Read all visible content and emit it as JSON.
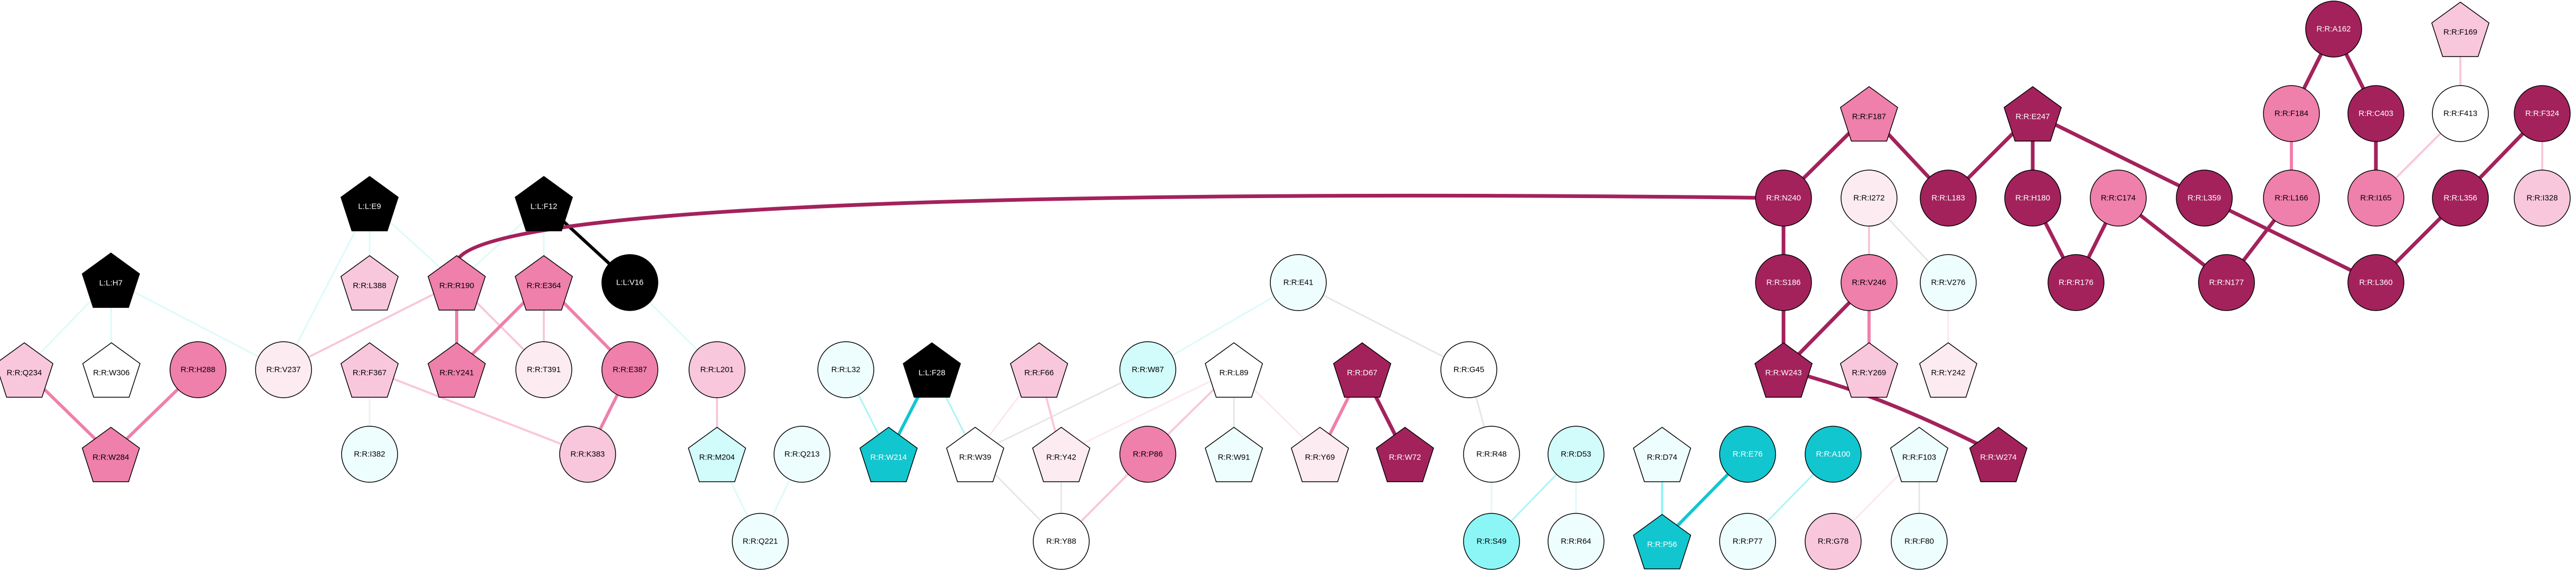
{
  "graph": {
    "palette": {
      "black": "#000000",
      "crimson": "#a3225c",
      "pink": "#ef7fab",
      "light_pink": "#f9c7dc",
      "pale_pink": "#fdebf2",
      "white": "#ffffff",
      "pale_cyan": "#eefefe",
      "light_cyan": "#d2fbfb",
      "cyan": "#8cf6f6",
      "teal": "#12c6cf"
    },
    "nodes": [
      {
        "id": "L:L:H7",
        "label": "L:L:H7",
        "shape": "pentagon",
        "color": "black"
      },
      {
        "id": "R:R:Q234",
        "label": "R:R:Q234",
        "shape": "pentagon",
        "color": "light_pink"
      },
      {
        "id": "R:R:W306",
        "label": "R:R:W306",
        "shape": "pentagon",
        "color": "white"
      },
      {
        "id": "R:R:H288",
        "label": "R:R:H288",
        "shape": "circle",
        "color": "pink"
      },
      {
        "id": "R:R:W284",
        "label": "R:R:W284",
        "shape": "pentagon",
        "color": "pink"
      },
      {
        "id": "L:L:E9",
        "label": "L:L:E9",
        "shape": "pentagon",
        "color": "black"
      },
      {
        "id": "R:R:L388",
        "label": "R:R:L388",
        "shape": "pentagon",
        "color": "light_pink"
      },
      {
        "id": "L:L:F12",
        "label": "L:L:F12",
        "shape": "pentagon",
        "color": "black"
      },
      {
        "id": "R:R:V237",
        "label": "R:R:V237",
        "shape": "circle",
        "color": "pale_pink"
      },
      {
        "id": "R:R:R190",
        "label": "R:R:R190",
        "shape": "pentagon",
        "color": "pink"
      },
      {
        "id": "R:R:E364",
        "label": "R:R:E364",
        "shape": "pentagon",
        "color": "pink"
      },
      {
        "id": "L:L:V16",
        "label": "L:L:V16",
        "shape": "circle",
        "color": "black"
      },
      {
        "id": "R:R:Y241",
        "label": "R:R:Y241",
        "shape": "pentagon",
        "color": "pink"
      },
      {
        "id": "R:R:T391",
        "label": "R:R:T391",
        "shape": "circle",
        "color": "pale_pink"
      },
      {
        "id": "R:R:E387",
        "label": "R:R:E387",
        "shape": "circle",
        "color": "pink"
      },
      {
        "id": "R:R:F367",
        "label": "R:R:F367",
        "shape": "pentagon",
        "color": "light_pink"
      },
      {
        "id": "R:R:K383",
        "label": "R:R:K383",
        "shape": "circle",
        "color": "light_pink"
      },
      {
        "id": "R:R:I382",
        "label": "R:R:I382",
        "shape": "circle",
        "color": "pale_cyan"
      },
      {
        "id": "R:R:L201",
        "label": "R:R:L201",
        "shape": "circle",
        "color": "light_pink"
      },
      {
        "id": "R:R:M204",
        "label": "R:R:M204",
        "shape": "pentagon",
        "color": "light_cyan"
      },
      {
        "id": "R:R:Q213",
        "label": "R:R:Q213",
        "shape": "circle",
        "color": "pale_cyan"
      },
      {
        "id": "R:R:Q221",
        "label": "R:R:Q221",
        "shape": "circle",
        "color": "pale_cyan"
      },
      {
        "id": "R:R:L32",
        "label": "R:R:L32",
        "shape": "circle",
        "color": "pale_cyan"
      },
      {
        "id": "L:L:F28",
        "label": "L:L:F28",
        "shape": "pentagon",
        "color": "black"
      },
      {
        "id": "R:R:W214",
        "label": "R:R:W214",
        "shape": "pentagon",
        "color": "teal"
      },
      {
        "id": "R:R:W39",
        "label": "R:R:W39",
        "shape": "pentagon",
        "color": "white"
      },
      {
        "id": "R:R:F66",
        "label": "R:R:F66",
        "shape": "pentagon",
        "color": "light_pink"
      },
      {
        "id": "R:R:Y42",
        "label": "R:R:Y42",
        "shape": "pentagon",
        "color": "pale_pink"
      },
      {
        "id": "R:R:Y88",
        "label": "R:R:Y88",
        "shape": "circle",
        "color": "white"
      },
      {
        "id": "R:R:W87",
        "label": "R:R:W87",
        "shape": "circle",
        "color": "light_cyan"
      },
      {
        "id": "R:R:P86",
        "label": "R:R:P86",
        "shape": "circle",
        "color": "pink"
      },
      {
        "id": "R:R:L89",
        "label": "R:R:L89",
        "shape": "pentagon",
        "color": "white"
      },
      {
        "id": "R:R:W91",
        "label": "R:R:W91",
        "shape": "pentagon",
        "color": "pale_cyan"
      },
      {
        "id": "R:R:E41",
        "label": "R:R:E41",
        "shape": "circle",
        "color": "pale_cyan"
      },
      {
        "id": "R:R:D67",
        "label": "R:R:D67",
        "shape": "pentagon",
        "color": "crimson"
      },
      {
        "id": "R:R:Y69",
        "label": "R:R:Y69",
        "shape": "pentagon",
        "color": "pale_pink"
      },
      {
        "id": "R:R:W72",
        "label": "R:R:W72",
        "shape": "pentagon",
        "color": "crimson"
      },
      {
        "id": "R:R:G45",
        "label": "R:R:G45",
        "shape": "circle",
        "color": "white"
      },
      {
        "id": "R:R:R48",
        "label": "R:R:R48",
        "shape": "circle",
        "color": "white"
      },
      {
        "id": "R:R:S49",
        "label": "R:R:S49",
        "shape": "circle",
        "color": "cyan"
      },
      {
        "id": "R:R:D53",
        "label": "R:R:D53",
        "shape": "circle",
        "color": "light_cyan"
      },
      {
        "id": "R:R:R64",
        "label": "R:R:R64",
        "shape": "circle",
        "color": "pale_cyan"
      },
      {
        "id": "R:R:D74",
        "label": "R:R:D74",
        "shape": "pentagon",
        "color": "pale_cyan"
      },
      {
        "id": "R:R:P56",
        "label": "R:R:P56",
        "shape": "pentagon",
        "color": "teal"
      },
      {
        "id": "R:R:E76",
        "label": "R:R:E76",
        "shape": "circle",
        "color": "teal"
      },
      {
        "id": "R:R:P77",
        "label": "R:R:P77",
        "shape": "circle",
        "color": "pale_cyan"
      },
      {
        "id": "R:R:A100",
        "label": "R:R:A100",
        "shape": "circle",
        "color": "teal"
      },
      {
        "id": "R:R:F103",
        "label": "R:R:F103",
        "shape": "pentagon",
        "color": "pale_cyan"
      },
      {
        "id": "R:R:G78",
        "label": "R:R:G78",
        "shape": "circle",
        "color": "light_pink"
      },
      {
        "id": "R:R:F80",
        "label": "R:R:F80",
        "shape": "circle",
        "color": "pale_cyan"
      },
      {
        "id": "R:R:F187",
        "label": "R:R:F187",
        "shape": "pentagon",
        "color": "pink"
      },
      {
        "id": "R:R:E247",
        "label": "R:R:E247",
        "shape": "pentagon",
        "color": "crimson"
      },
      {
        "id": "R:R:N240",
        "label": "R:R:N240",
        "shape": "circle",
        "color": "crimson"
      },
      {
        "id": "R:R:L183",
        "label": "R:R:L183",
        "shape": "circle",
        "color": "crimson"
      },
      {
        "id": "R:R:I272",
        "label": "R:R:I272",
        "shape": "circle",
        "color": "pale_pink"
      },
      {
        "id": "R:R:H180",
        "label": "R:R:H180",
        "shape": "circle",
        "color": "crimson"
      },
      {
        "id": "R:R:C174",
        "label": "R:R:C174",
        "shape": "circle",
        "color": "pink"
      },
      {
        "id": "R:R:L359",
        "label": "R:R:L359",
        "shape": "circle",
        "color": "crimson"
      },
      {
        "id": "R:R:S186",
        "label": "R:R:S186",
        "shape": "circle",
        "color": "crimson"
      },
      {
        "id": "R:R:V246",
        "label": "R:R:V246",
        "shape": "circle",
        "color": "pink"
      },
      {
        "id": "R:R:V276",
        "label": "R:R:V276",
        "shape": "circle",
        "color": "pale_cyan"
      },
      {
        "id": "R:R:W243",
        "label": "R:R:W243",
        "shape": "pentagon",
        "color": "crimson"
      },
      {
        "id": "R:R:Y269",
        "label": "R:R:Y269",
        "shape": "pentagon",
        "color": "light_pink"
      },
      {
        "id": "R:R:Y242",
        "label": "R:R:Y242",
        "shape": "pentagon",
        "color": "pale_pink"
      },
      {
        "id": "R:R:W274",
        "label": "R:R:W274",
        "shape": "pentagon",
        "color": "crimson"
      },
      {
        "id": "R:R:R176",
        "label": "R:R:R176",
        "shape": "circle",
        "color": "crimson"
      },
      {
        "id": "R:R:N177",
        "label": "R:R:N177",
        "shape": "circle",
        "color": "crimson"
      },
      {
        "id": "R:R:A162",
        "label": "R:R:A162",
        "shape": "circle",
        "color": "crimson"
      },
      {
        "id": "R:R:F169",
        "label": "R:R:F169",
        "shape": "pentagon",
        "color": "light_pink"
      },
      {
        "id": "R:R:F184",
        "label": "R:R:F184",
        "shape": "circle",
        "color": "pink"
      },
      {
        "id": "R:R:C403",
        "label": "R:R:C403",
        "shape": "circle",
        "color": "crimson"
      },
      {
        "id": "R:R:F413",
        "label": "R:R:F413",
        "shape": "circle",
        "color": "white"
      },
      {
        "id": "R:R:F324",
        "label": "R:R:F324",
        "shape": "circle",
        "color": "crimson"
      },
      {
        "id": "R:R:L166",
        "label": "R:R:L166",
        "shape": "circle",
        "color": "pink"
      },
      {
        "id": "R:R:I165",
        "label": "R:R:I165",
        "shape": "circle",
        "color": "pink"
      },
      {
        "id": "R:R:I328",
        "label": "R:R:I328",
        "shape": "circle",
        "color": "light_pink"
      },
      {
        "id": "R:R:L356",
        "label": "R:R:L356",
        "shape": "circle",
        "color": "crimson"
      },
      {
        "id": "R:R:L360",
        "label": "R:R:L360",
        "shape": "circle",
        "color": "crimson"
      }
    ],
    "edges": [
      {
        "source": "L:L:H7",
        "target": "R:R:Q234",
        "color": "#dcfafa",
        "weight": 3
      },
      {
        "source": "L:L:H7",
        "target": "R:R:W306",
        "color": "#dcfafa",
        "weight": 3
      },
      {
        "source": "L:L:H7",
        "target": "R:R:V237",
        "color": "#dcfafa",
        "weight": 3
      },
      {
        "source": "R:R:Q234",
        "target": "R:R:W284",
        "color": "#ef7fab",
        "weight": 6
      },
      {
        "source": "R:R:H288",
        "target": "R:R:W284",
        "color": "#ef7fab",
        "weight": 6
      },
      {
        "source": "L:L:E9",
        "target": "R:R:L388",
        "color": "#dcfafa",
        "weight": 3
      },
      {
        "source": "L:L:E9",
        "target": "R:R:V237",
        "color": "#dcfafa",
        "weight": 3
      },
      {
        "source": "L:L:E9",
        "target": "R:R:R190",
        "color": "#dcfafa",
        "weight": 3
      },
      {
        "source": "L:L:F12",
        "target": "R:R:R190",
        "color": "#dcfafa",
        "weight": 3
      },
      {
        "source": "L:L:F12",
        "target": "R:R:T391",
        "color": "#dcfafa",
        "weight": 3
      },
      {
        "source": "L:L:F12",
        "target": "L:L:V16",
        "color": "#000000",
        "weight": 6
      },
      {
        "source": "R:R:V237",
        "target": "R:R:R190",
        "color": "#f9c7dc",
        "weight": 4
      },
      {
        "source": "R:R:R190",
        "target": "R:R:Y241",
        "color": "#ef7fab",
        "weight": 6
      },
      {
        "source": "R:R:R190",
        "target": "R:R:T391",
        "color": "#f9c7dc",
        "weight": 4
      },
      {
        "source": "R:R:R190",
        "target": "R:R:N240",
        "color": "#a3225c",
        "weight": 7
      },
      {
        "source": "R:R:E364",
        "target": "R:R:Y241",
        "color": "#ef7fab",
        "weight": 6
      },
      {
        "source": "R:R:E364",
        "target": "R:R:T391",
        "color": "#f9c7dc",
        "weight": 4
      },
      {
        "source": "R:R:E364",
        "target": "R:R:E387",
        "color": "#ef7fab",
        "weight": 6
      },
      {
        "source": "R:R:E387",
        "target": "R:R:K383",
        "color": "#ef7fab",
        "weight": 6
      },
      {
        "source": "R:R:F367",
        "target": "R:R:K383",
        "color": "#f9c7dc",
        "weight": 4
      },
      {
        "source": "R:R:F367",
        "target": "R:R:I382",
        "color": "#f0f0f0",
        "weight": 3
      },
      {
        "source": "L:L:V16",
        "target": "R:R:L201",
        "color": "#dcfafa",
        "weight": 3
      },
      {
        "source": "R:R:L201",
        "target": "R:R:M204",
        "color": "#f9c7dc",
        "weight": 4
      },
      {
        "source": "R:R:M204",
        "target": "R:R:Q221",
        "color": "#dcfafa",
        "weight": 3
      },
      {
        "source": "R:R:Q213",
        "target": "R:R:Q221",
        "color": "#dcfafa",
        "weight": 3
      },
      {
        "source": "R:R:L32",
        "target": "R:R:W214",
        "color": "#aaf4f4",
        "weight": 3
      },
      {
        "source": "L:L:F28",
        "target": "R:R:W214",
        "color": "#12c6cf",
        "weight": 6
      },
      {
        "source": "L:L:F28",
        "target": "R:R:W39",
        "color": "#aaf4f4",
        "weight": 3
      },
      {
        "source": "R:R:W39",
        "target": "R:R:Y88",
        "color": "#e6e6e6",
        "weight": 3
      },
      {
        "source": "R:R:W39",
        "target": "R:R:F66",
        "color": "#fde6ef",
        "weight": 3
      },
      {
        "source": "R:R:W39",
        "target": "R:R:W87",
        "color": "#e6e6e6",
        "weight": 3
      },
      {
        "source": "R:R:F66",
        "target": "R:R:Y42",
        "color": "#f9c7dc",
        "weight": 4
      },
      {
        "source": "R:R:Y42",
        "target": "R:R:Y88",
        "color": "#e6e6e6",
        "weight": 3
      },
      {
        "source": "R:R:Y42",
        "target": "R:R:L89",
        "color": "#fde6ef",
        "weight": 3
      },
      {
        "source": "R:R:P86",
        "target": "R:R:Y88",
        "color": "#f9c7dc",
        "weight": 4
      },
      {
        "source": "R:R:P86",
        "target": "R:R:L89",
        "color": "#f9c7dc",
        "weight": 4
      },
      {
        "source": "R:R:L89",
        "target": "R:R:W91",
        "color": "#e6e6e6",
        "weight": 3
      },
      {
        "source": "R:R:L89",
        "target": "R:R:Y69",
        "color": "#fde6ef",
        "weight": 3
      },
      {
        "source": "R:R:W87",
        "target": "R:R:E41",
        "color": "#dcfafa",
        "weight": 3
      },
      {
        "source": "R:R:E41",
        "target": "R:R:G45",
        "color": "#e6e6e6",
        "weight": 3
      },
      {
        "source": "R:R:D67",
        "target": "R:R:Y69",
        "color": "#ef7fab",
        "weight": 6
      },
      {
        "source": "R:R:D67",
        "target": "R:R:W72",
        "color": "#a3225c",
        "weight": 7
      },
      {
        "source": "R:R:G45",
        "target": "R:R:R48",
        "color": "#e6e6e6",
        "weight": 3
      },
      {
        "source": "R:R:R48",
        "target": "R:R:S49",
        "color": "#dcfafa",
        "weight": 3
      },
      {
        "source": "R:R:D53",
        "target": "R:R:S49",
        "color": "#aaf4f4",
        "weight": 3
      },
      {
        "source": "R:R:D53",
        "target": "R:R:R64",
        "color": "#dcfafa",
        "weight": 3
      },
      {
        "source": "R:R:D74",
        "target": "R:R:P56",
        "color": "#8cf6f6",
        "weight": 4
      },
      {
        "source": "R:R:E76",
        "target": "R:R:P56",
        "color": "#12c6cf",
        "weight": 6
      },
      {
        "source": "R:R:A100",
        "target": "R:R:P77",
        "color": "#aaf4f4",
        "weight": 3
      },
      {
        "source": "R:R:F103",
        "target": "R:R:G78",
        "color": "#fde6ef",
        "weight": 3
      },
      {
        "source": "R:R:F103",
        "target": "R:R:F80",
        "color": "#e6e6e6",
        "weight": 3
      },
      {
        "source": "R:R:F187",
        "target": "R:R:N240",
        "color": "#a3225c",
        "weight": 7
      },
      {
        "source": "R:R:F187",
        "target": "R:R:L183",
        "color": "#a3225c",
        "weight": 7
      },
      {
        "source": "R:R:E247",
        "target": "R:R:L183",
        "color": "#a3225c",
        "weight": 7
      },
      {
        "source": "R:R:E247",
        "target": "R:R:H180",
        "color": "#a3225c",
        "weight": 7
      },
      {
        "source": "R:R:E247",
        "target": "R:R:L359",
        "color": "#a3225c",
        "weight": 7
      },
      {
        "source": "R:R:N240",
        "target": "R:R:S186",
        "color": "#a3225c",
        "weight": 7
      },
      {
        "source": "R:R:S186",
        "target": "R:R:W243",
        "color": "#a3225c",
        "weight": 7
      },
      {
        "source": "R:R:I272",
        "target": "R:R:V246",
        "color": "#f9c7dc",
        "weight": 4
      },
      {
        "source": "R:R:I272",
        "target": "R:R:V276",
        "color": "#e6e6e6",
        "weight": 3
      },
      {
        "source": "R:R:V246",
        "target": "R:R:W243",
        "color": "#a3225c",
        "weight": 7
      },
      {
        "source": "R:R:V246",
        "target": "R:R:Y269",
        "color": "#ef7fab",
        "weight": 6
      },
      {
        "source": "R:R:V276",
        "target": "R:R:Y242",
        "color": "#fde6ef",
        "weight": 3
      },
      {
        "source": "R:R:W243",
        "target": "R:R:W274",
        "color": "#a3225c",
        "weight": 7
      },
      {
        "source": "R:R:H180",
        "target": "R:R:R176",
        "color": "#a3225c",
        "weight": 7
      },
      {
        "source": "R:R:C174",
        "target": "R:R:R176",
        "color": "#a3225c",
        "weight": 7
      },
      {
        "source": "R:R:C174",
        "target": "R:R:N177",
        "color": "#a3225c",
        "weight": 7
      },
      {
        "source": "R:R:L359",
        "target": "R:R:L360",
        "color": "#a3225c",
        "weight": 7
      },
      {
        "source": "R:R:A162",
        "target": "R:R:F184",
        "color": "#a3225c",
        "weight": 7
      },
      {
        "source": "R:R:A162",
        "target": "R:R:C403",
        "color": "#a3225c",
        "weight": 7
      },
      {
        "source": "R:R:F184",
        "target": "R:R:L166",
        "color": "#ef7fab",
        "weight": 6
      },
      {
        "source": "R:R:C403",
        "target": "R:R:I165",
        "color": "#a3225c",
        "weight": 7
      },
      {
        "source": "R:R:F169",
        "target": "R:R:F413",
        "color": "#f9c7dc",
        "weight": 4
      },
      {
        "source": "R:R:F413",
        "target": "R:R:I165",
        "color": "#f9c7dc",
        "weight": 4
      },
      {
        "source": "R:R:L166",
        "target": "R:R:N177",
        "color": "#a3225c",
        "weight": 7
      },
      {
        "source": "R:R:F324",
        "target": "R:R:I328",
        "color": "#f9c7dc",
        "weight": 4
      },
      {
        "source": "R:R:F324",
        "target": "R:R:L356",
        "color": "#a3225c",
        "weight": 7
      },
      {
        "source": "R:R:L356",
        "target": "R:R:L360",
        "color": "#a3225c",
        "weight": 7
      }
    ]
  }
}
